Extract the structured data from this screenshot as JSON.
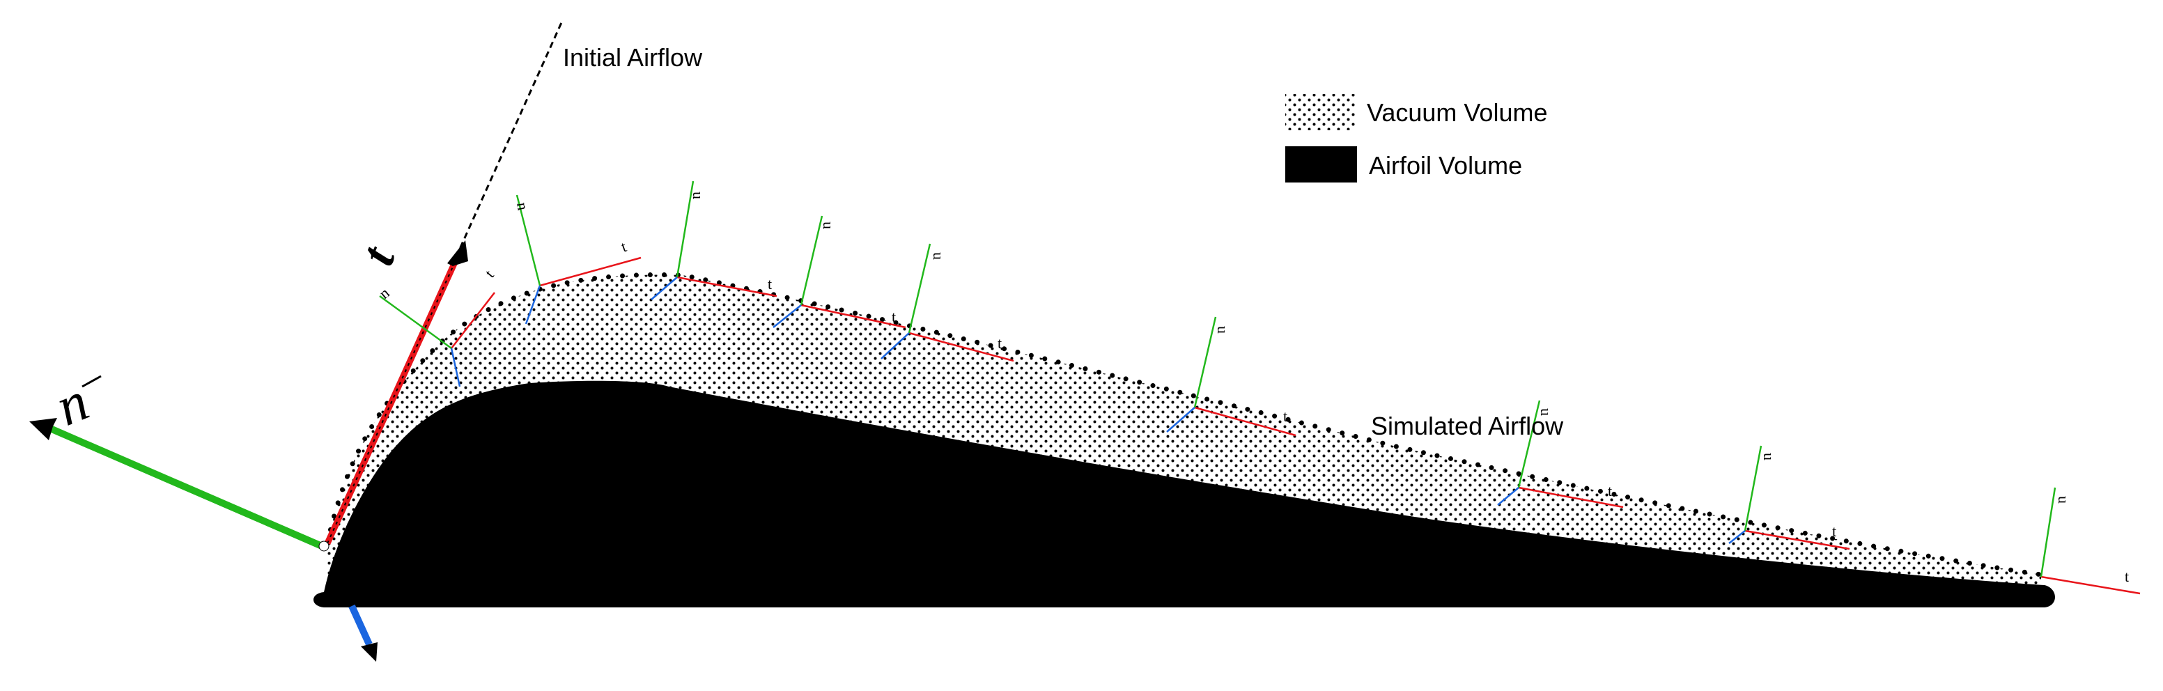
{
  "labels": {
    "initial_airflow": "Initial Airflow",
    "simulated_airflow": "Simulated Airflow"
  },
  "legend": {
    "vacuum_volume": "Vacuum Volume",
    "airfoil_volume": "Airfoil Volume"
  },
  "symbols": {
    "t": "t",
    "n": "n",
    "u": "u",
    "vector_arrow": "→"
  },
  "colors": {
    "tangent": "#e8141a",
    "normal": "#22b81c",
    "velocity_blue": "#1b66e0",
    "airfoil": "#000000",
    "dots": "#000000"
  }
}
